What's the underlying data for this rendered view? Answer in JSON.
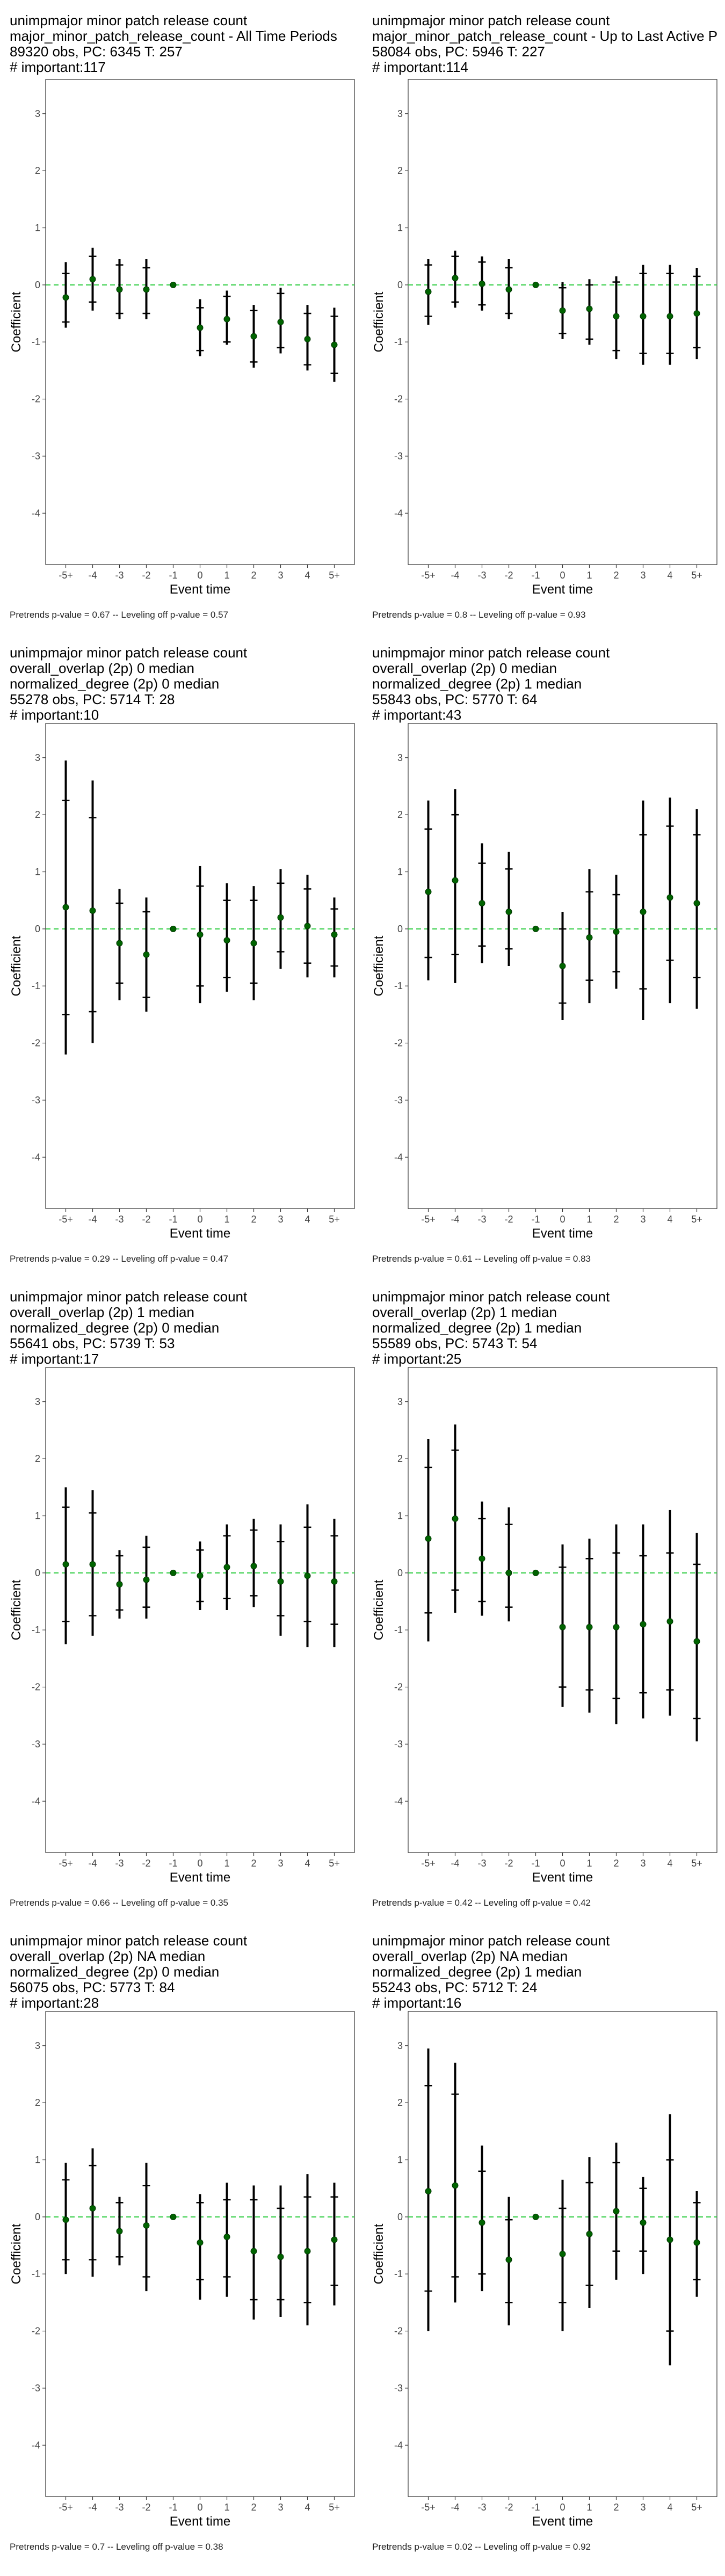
{
  "chart_data": [
    {
      "type": "scatter",
      "title_lines": [
        "unimpmajor minor patch release count",
        "major_minor_patch_release_count - All Time Periods",
        "89320 obs, PC: 6345 T: 257",
        "# important:117"
      ],
      "xlabel": "Event time",
      "ylabel": "Coefficient",
      "categories": [
        "-5+",
        "-4",
        "-3",
        "-2",
        "-1",
        "0",
        "1",
        "2",
        "3",
        "4",
        "5+"
      ],
      "ylim": [
        -4.9,
        3.6
      ],
      "yticks": [
        -4,
        -3,
        -2,
        -1,
        0,
        1,
        2,
        3
      ],
      "estimates": [
        -0.22,
        0.1,
        -0.08,
        -0.08,
        0.0,
        -0.75,
        -0.6,
        -0.9,
        -0.65,
        -0.95,
        -1.05
      ],
      "ci95": [
        [
          -0.75,
          0.4
        ],
        [
          -0.45,
          0.65
        ],
        [
          -0.6,
          0.45
        ],
        [
          -0.6,
          0.45
        ],
        [
          0.0,
          0.0
        ],
        [
          -1.25,
          -0.25
        ],
        [
          -1.05,
          -0.1
        ],
        [
          -1.45,
          -0.35
        ],
        [
          -1.2,
          -0.05
        ],
        [
          -1.5,
          -0.35
        ],
        [
          -1.7,
          -0.4
        ]
      ],
      "ci90": [
        [
          -0.65,
          0.2
        ],
        [
          -0.3,
          0.5
        ],
        [
          -0.5,
          0.35
        ],
        [
          -0.5,
          0.3
        ],
        [
          0.0,
          0.0
        ],
        [
          -1.15,
          -0.4
        ],
        [
          -1.0,
          -0.2
        ],
        [
          -1.35,
          -0.45
        ],
        [
          -1.1,
          -0.15
        ],
        [
          -1.4,
          -0.5
        ],
        [
          -1.55,
          -0.55
        ]
      ],
      "footer": "Pretrends p-value = 0.67 -- Leveling off p-value = 0.57",
      "colors": {
        "point": "#006400",
        "reference_line": "#2ecc40"
      }
    },
    {
      "type": "scatter",
      "title_lines": [
        "unimpmajor minor patch release count",
        "major_minor_patch_release_count - Up to Last Active P",
        "58084 obs, PC: 5946 T: 227",
        "# important:114"
      ],
      "xlabel": "Event time",
      "ylabel": "Coefficient",
      "categories": [
        "-5+",
        "-4",
        "-3",
        "-2",
        "-1",
        "0",
        "1",
        "2",
        "3",
        "4",
        "5+"
      ],
      "ylim": [
        -4.9,
        3.6
      ],
      "yticks": [
        -4,
        -3,
        -2,
        -1,
        0,
        1,
        2,
        3
      ],
      "estimates": [
        -0.12,
        0.12,
        0.02,
        -0.08,
        0.0,
        -0.45,
        -0.42,
        -0.55,
        -0.55,
        -0.55,
        -0.5
      ],
      "ci95": [
        [
          -0.7,
          0.45
        ],
        [
          -0.4,
          0.6
        ],
        [
          -0.45,
          0.5
        ],
        [
          -0.6,
          0.45
        ],
        [
          0.0,
          0.0
        ],
        [
          -0.95,
          0.05
        ],
        [
          -1.05,
          0.1
        ],
        [
          -1.3,
          0.15
        ],
        [
          -1.4,
          0.35
        ],
        [
          -1.4,
          0.35
        ],
        [
          -1.3,
          0.3
        ]
      ],
      "ci90": [
        [
          -0.55,
          0.35
        ],
        [
          -0.3,
          0.5
        ],
        [
          -0.35,
          0.4
        ],
        [
          -0.5,
          0.3
        ],
        [
          0.0,
          0.0
        ],
        [
          -0.85,
          -0.05
        ],
        [
          -0.95,
          0.0
        ],
        [
          -1.15,
          0.05
        ],
        [
          -1.2,
          0.2
        ],
        [
          -1.2,
          0.2
        ],
        [
          -1.1,
          0.15
        ]
      ],
      "footer": "Pretrends p-value = 0.8 -- Leveling off p-value = 0.93",
      "colors": {
        "point": "#006400",
        "reference_line": "#2ecc40"
      }
    },
    {
      "type": "scatter",
      "title_lines": [
        "unimpmajor minor patch release count",
        "overall_overlap (2p) 0 median",
        "normalized_degree (2p) 0 median",
        "55278 obs, PC: 5714 T: 28",
        "# important:10"
      ],
      "xlabel": "Event time",
      "ylabel": "Coefficient",
      "categories": [
        "-5+",
        "-4",
        "-3",
        "-2",
        "-1",
        "0",
        "1",
        "2",
        "3",
        "4",
        "5+"
      ],
      "ylim": [
        -4.9,
        3.6
      ],
      "yticks": [
        -4,
        -3,
        -2,
        -1,
        0,
        1,
        2,
        3
      ],
      "estimates": [
        0.38,
        0.32,
        -0.25,
        -0.45,
        0.0,
        -0.1,
        -0.2,
        -0.25,
        0.2,
        0.05,
        -0.1
      ],
      "ci95": [
        [
          -2.2,
          2.95
        ],
        [
          -2.0,
          2.6
        ],
        [
          -1.25,
          0.7
        ],
        [
          -1.45,
          0.55
        ],
        [
          0.0,
          0.0
        ],
        [
          -1.3,
          1.1
        ],
        [
          -1.1,
          0.8
        ],
        [
          -1.25,
          0.75
        ],
        [
          -0.7,
          1.05
        ],
        [
          -0.85,
          0.95
        ],
        [
          -0.85,
          0.55
        ]
      ],
      "ci90": [
        [
          -1.5,
          2.25
        ],
        [
          -1.45,
          1.95
        ],
        [
          -0.95,
          0.45
        ],
        [
          -1.2,
          0.3
        ],
        [
          0.0,
          0.0
        ],
        [
          -1.0,
          0.75
        ],
        [
          -0.85,
          0.5
        ],
        [
          -0.95,
          0.5
        ],
        [
          -0.4,
          0.8
        ],
        [
          -0.6,
          0.7
        ],
        [
          -0.65,
          0.35
        ]
      ],
      "footer": "Pretrends p-value = 0.29 -- Leveling off p-value = 0.47",
      "colors": {
        "point": "#006400",
        "reference_line": "#2ecc40"
      }
    },
    {
      "type": "scatter",
      "title_lines": [
        "unimpmajor minor patch release count",
        "overall_overlap (2p) 0 median",
        "normalized_degree (2p) 1 median",
        "55843 obs, PC: 5770 T: 64",
        "# important:43"
      ],
      "xlabel": "Event time",
      "ylabel": "Coefficient",
      "categories": [
        "-5+",
        "-4",
        "-3",
        "-2",
        "-1",
        "0",
        "1",
        "2",
        "3",
        "4",
        "5+"
      ],
      "ylim": [
        -4.9,
        3.6
      ],
      "yticks": [
        -4,
        -3,
        -2,
        -1,
        0,
        1,
        2,
        3
      ],
      "estimates": [
        0.65,
        0.85,
        0.45,
        0.3,
        0.0,
        -0.65,
        -0.15,
        -0.05,
        0.3,
        0.55,
        0.45
      ],
      "ci95": [
        [
          -0.9,
          2.25
        ],
        [
          -0.95,
          2.45
        ],
        [
          -0.6,
          1.5
        ],
        [
          -0.65,
          1.35
        ],
        [
          0.0,
          0.0
        ],
        [
          -1.6,
          0.3
        ],
        [
          -1.3,
          1.05
        ],
        [
          -1.05,
          0.95
        ],
        [
          -1.6,
          2.25
        ],
        [
          -1.3,
          2.3
        ],
        [
          -1.4,
          2.1
        ]
      ],
      "ci90": [
        [
          -0.5,
          1.75
        ],
        [
          -0.45,
          2.0
        ],
        [
          -0.3,
          1.15
        ],
        [
          -0.35,
          1.05
        ],
        [
          0.0,
          0.0
        ],
        [
          -1.3,
          0.0
        ],
        [
          -0.9,
          0.65
        ],
        [
          -0.75,
          0.6
        ],
        [
          -1.05,
          1.65
        ],
        [
          -0.55,
          1.8
        ],
        [
          -0.85,
          1.65
        ]
      ],
      "footer": "Pretrends p-value = 0.61 -- Leveling off p-value = 0.83",
      "colors": {
        "point": "#006400",
        "reference_line": "#2ecc40"
      }
    },
    {
      "type": "scatter",
      "title_lines": [
        "unimpmajor minor patch release count",
        "overall_overlap (2p) 1 median",
        "normalized_degree (2p) 0 median",
        "55641 obs, PC: 5739 T: 53",
        "# important:17"
      ],
      "xlabel": "Event time",
      "ylabel": "Coefficient",
      "categories": [
        "-5+",
        "-4",
        "-3",
        "-2",
        "-1",
        "0",
        "1",
        "2",
        "3",
        "4",
        "5+"
      ],
      "ylim": [
        -4.9,
        3.6
      ],
      "yticks": [
        -4,
        -3,
        -2,
        -1,
        0,
        1,
        2,
        3
      ],
      "estimates": [
        0.15,
        0.15,
        -0.2,
        -0.12,
        0.0,
        -0.05,
        0.1,
        0.12,
        -0.15,
        -0.05,
        -0.15
      ],
      "ci95": [
        [
          -1.25,
          1.5
        ],
        [
          -1.1,
          1.45
        ],
        [
          -0.8,
          0.4
        ],
        [
          -0.8,
          0.65
        ],
        [
          0.0,
          0.0
        ],
        [
          -0.65,
          0.55
        ],
        [
          -0.65,
          0.85
        ],
        [
          -0.6,
          0.95
        ],
        [
          -1.1,
          0.85
        ],
        [
          -1.3,
          1.2
        ],
        [
          -1.3,
          0.95
        ]
      ],
      "ci90": [
        [
          -0.85,
          1.15
        ],
        [
          -0.75,
          1.05
        ],
        [
          -0.65,
          0.3
        ],
        [
          -0.6,
          0.45
        ],
        [
          0.0,
          0.0
        ],
        [
          -0.5,
          0.4
        ],
        [
          -0.45,
          0.65
        ],
        [
          -0.4,
          0.75
        ],
        [
          -0.75,
          0.55
        ],
        [
          -0.85,
          0.8
        ],
        [
          -0.9,
          0.65
        ]
      ],
      "footer": "Pretrends p-value = 0.66 -- Leveling off p-value = 0.35",
      "colors": {
        "point": "#006400",
        "reference_line": "#2ecc40"
      }
    },
    {
      "type": "scatter",
      "title_lines": [
        "unimpmajor minor patch release count",
        "overall_overlap (2p) 1 median",
        "normalized_degree (2p) 1 median",
        "55589 obs, PC: 5743 T: 54",
        "# important:25"
      ],
      "xlabel": "Event time",
      "ylabel": "Coefficient",
      "categories": [
        "-5+",
        "-4",
        "-3",
        "-2",
        "-1",
        "0",
        "1",
        "2",
        "3",
        "4",
        "5+"
      ],
      "ylim": [
        -4.9,
        3.6
      ],
      "yticks": [
        -4,
        -3,
        -2,
        -1,
        0,
        1,
        2,
        3
      ],
      "estimates": [
        0.6,
        0.95,
        0.25,
        0.0,
        0.0,
        -0.95,
        -0.95,
        -0.95,
        -0.9,
        -0.85,
        -1.2
      ],
      "ci95": [
        [
          -1.2,
          2.35
        ],
        [
          -0.7,
          2.6
        ],
        [
          -0.75,
          1.25
        ],
        [
          -0.85,
          1.15
        ],
        [
          0.0,
          0.0
        ],
        [
          -2.35,
          0.5
        ],
        [
          -2.45,
          0.6
        ],
        [
          -2.65,
          0.85
        ],
        [
          -2.55,
          0.85
        ],
        [
          -2.5,
          1.1
        ],
        [
          -2.95,
          0.7
        ]
      ],
      "ci90": [
        [
          -0.7,
          1.85
        ],
        [
          -0.3,
          2.15
        ],
        [
          -0.5,
          0.95
        ],
        [
          -0.6,
          0.85
        ],
        [
          0.0,
          0.0
        ],
        [
          -2.0,
          0.1
        ],
        [
          -2.05,
          0.25
        ],
        [
          -2.2,
          0.35
        ],
        [
          -2.1,
          0.3
        ],
        [
          -2.05,
          0.35
        ],
        [
          -2.55,
          0.15
        ]
      ],
      "footer": "Pretrends p-value = 0.42 -- Leveling off p-value = 0.42",
      "colors": {
        "point": "#006400",
        "reference_line": "#2ecc40"
      }
    },
    {
      "type": "scatter",
      "title_lines": [
        "unimpmajor minor patch release count",
        "overall_overlap (2p) NA median",
        "normalized_degree (2p) 0 median",
        "56075 obs, PC: 5773 T: 84",
        "# important:28"
      ],
      "xlabel": "Event time",
      "ylabel": "Coefficient",
      "categories": [
        "-5+",
        "-4",
        "-3",
        "-2",
        "-1",
        "0",
        "1",
        "2",
        "3",
        "4",
        "5+"
      ],
      "ylim": [
        -4.9,
        3.6
      ],
      "yticks": [
        -4,
        -3,
        -2,
        -1,
        0,
        1,
        2,
        3
      ],
      "estimates": [
        -0.05,
        0.15,
        -0.25,
        -0.15,
        0.0,
        -0.45,
        -0.35,
        -0.6,
        -0.7,
        -0.6,
        -0.4
      ],
      "ci95": [
        [
          -1.0,
          0.95
        ],
        [
          -1.05,
          1.2
        ],
        [
          -0.85,
          0.35
        ],
        [
          -1.3,
          0.95
        ],
        [
          0.0,
          0.0
        ],
        [
          -1.45,
          0.4
        ],
        [
          -1.4,
          0.6
        ],
        [
          -1.8,
          0.55
        ],
        [
          -1.75,
          0.55
        ],
        [
          -1.9,
          0.75
        ],
        [
          -1.55,
          0.6
        ]
      ],
      "ci90": [
        [
          -0.75,
          0.65
        ],
        [
          -0.75,
          0.9
        ],
        [
          -0.7,
          0.25
        ],
        [
          -1.05,
          0.55
        ],
        [
          0.0,
          0.0
        ],
        [
          -1.1,
          0.25
        ],
        [
          -1.05,
          0.3
        ],
        [
          -1.45,
          0.3
        ],
        [
          -1.45,
          0.15
        ],
        [
          -1.5,
          0.35
        ],
        [
          -1.2,
          0.35
        ]
      ],
      "footer": "Pretrends p-value = 0.7 -- Leveling off p-value = 0.38",
      "colors": {
        "point": "#006400",
        "reference_line": "#2ecc40"
      }
    },
    {
      "type": "scatter",
      "title_lines": [
        "unimpmajor minor patch release count",
        "overall_overlap (2p) NA median",
        "normalized_degree (2p) 1 median",
        "55243 obs, PC: 5712 T: 24",
        "# important:16"
      ],
      "xlabel": "Event time",
      "ylabel": "Coefficient",
      "categories": [
        "-5+",
        "-4",
        "-3",
        "-2",
        "-1",
        "0",
        "1",
        "2",
        "3",
        "4",
        "5+"
      ],
      "ylim": [
        -4.9,
        3.6
      ],
      "yticks": [
        -4,
        -3,
        -2,
        -1,
        0,
        1,
        2,
        3
      ],
      "estimates": [
        0.45,
        0.55,
        -0.1,
        -0.75,
        0.0,
        -0.65,
        -0.3,
        0.1,
        -0.1,
        -0.4,
        -0.45
      ],
      "ci95": [
        [
          -2.0,
          2.95
        ],
        [
          -1.5,
          2.7
        ],
        [
          -1.3,
          1.25
        ],
        [
          -1.9,
          0.35
        ],
        [
          0.0,
          0.0
        ],
        [
          -2.0,
          0.65
        ],
        [
          -1.6,
          1.05
        ],
        [
          -1.1,
          1.3
        ],
        [
          -1.0,
          0.7
        ],
        [
          -2.6,
          1.8
        ],
        [
          -1.4,
          0.45
        ]
      ],
      "ci90": [
        [
          -1.3,
          2.3
        ],
        [
          -1.05,
          2.15
        ],
        [
          -1.0,
          0.8
        ],
        [
          -1.5,
          -0.05
        ],
        [
          0.0,
          0.0
        ],
        [
          -1.5,
          0.15
        ],
        [
          -1.2,
          0.6
        ],
        [
          -0.6,
          0.95
        ],
        [
          -0.6,
          0.5
        ],
        [
          -2.0,
          1.0
        ],
        [
          -1.1,
          0.25
        ]
      ],
      "footer": "Pretrends p-value = 0.02 -- Leveling off p-value = 0.92",
      "colors": {
        "point": "#006400",
        "reference_line": "#2ecc40"
      }
    }
  ]
}
